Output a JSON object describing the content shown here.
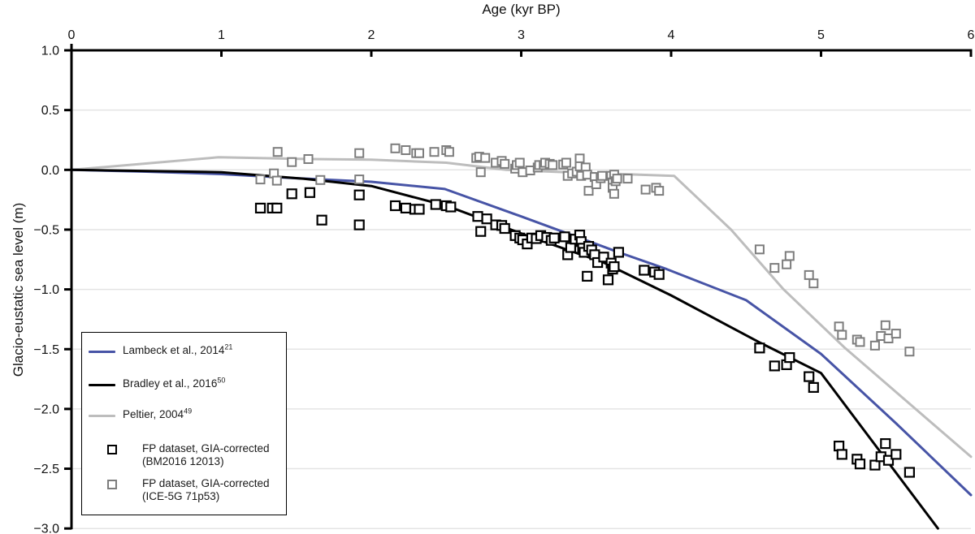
{
  "figure": {
    "xlabel": "Age (kyr BP)",
    "ylabel": "Glacio-eustatic sea level (m)"
  },
  "chart_data": {
    "type": "line",
    "title": "",
    "xlabel": "Age (kyr BP)",
    "ylabel": "Glacio-eustatic sea level (m)",
    "xlim": [
      0,
      6
    ],
    "ylim": [
      -3.0,
      1.0
    ],
    "x_ticks": [
      0,
      1,
      2,
      3,
      4,
      5,
      6
    ],
    "y_ticks": [
      1.0,
      0.5,
      0.0,
      -0.5,
      -1.0,
      -1.5,
      -2.0,
      -2.5,
      -3.0
    ],
    "grid": "horizontal",
    "x_axis_position": "top",
    "legend_position": "lower-left",
    "colors": {
      "lambeck": "#4754a6",
      "bradley": "#000000",
      "peltier": "#bdbdbd",
      "scatter_black": "#000000",
      "scatter_gray": "#7d7d7d",
      "gridline": "#e4e4e4"
    },
    "series": [
      {
        "name": "Peltier, 2004",
        "sup": "49",
        "type": "line",
        "color": "#bdbdbd",
        "width": 3,
        "points": [
          [
            0,
            0
          ],
          [
            0.98,
            0.105
          ],
          [
            1.6,
            0.09
          ],
          [
            2.0,
            0.085
          ],
          [
            2.5,
            0.06
          ],
          [
            2.9,
            0.0
          ],
          [
            3.3,
            -0.02
          ],
          [
            4.02,
            -0.05
          ],
          [
            4.4,
            -0.5
          ],
          [
            4.75,
            -1.0
          ],
          [
            5.16,
            -1.49
          ],
          [
            6.0,
            -2.4
          ]
        ]
      },
      {
        "name": "Lambeck et al., 2014",
        "sup": "21",
        "type": "line",
        "color": "#4754a6",
        "width": 3,
        "points": [
          [
            0,
            0
          ],
          [
            0.5,
            -0.015
          ],
          [
            1.0,
            -0.035
          ],
          [
            1.5,
            -0.07
          ],
          [
            2.0,
            -0.1
          ],
          [
            2.49,
            -0.16
          ],
          [
            3.0,
            -0.39
          ],
          [
            3.64,
            -0.685
          ],
          [
            3.97,
            -0.83
          ],
          [
            4.5,
            -1.09
          ],
          [
            5.0,
            -1.54
          ],
          [
            5.5,
            -2.12
          ],
          [
            6.0,
            -2.72
          ]
        ]
      },
      {
        "name": "Bradley et al., 2016",
        "sup": "50",
        "type": "line",
        "color": "#000000",
        "width": 3,
        "points": [
          [
            0,
            0
          ],
          [
            1.0,
            -0.02
          ],
          [
            1.55,
            -0.075
          ],
          [
            2.0,
            -0.135
          ],
          [
            2.5,
            -0.3
          ],
          [
            3.05,
            -0.555
          ],
          [
            3.55,
            -0.775
          ],
          [
            4.0,
            -1.05
          ],
          [
            4.6,
            -1.45
          ],
          [
            5.0,
            -1.7
          ],
          [
            5.78,
            -3.0
          ]
        ]
      },
      {
        "name": "FP dataset, GIA-corrected (ICE-5G 71p53)",
        "type": "scatter",
        "marker": "open-square",
        "color": "#7d7d7d",
        "size": 10,
        "stroke": 2,
        "points": [
          [
            1.26,
            -0.08
          ],
          [
            1.35,
            -0.03
          ],
          [
            1.37,
            -0.09
          ],
          [
            1.375,
            0.15
          ],
          [
            1.47,
            0.065
          ],
          [
            1.58,
            0.09
          ],
          [
            1.66,
            -0.085
          ],
          [
            1.92,
            0.14
          ],
          [
            1.92,
            -0.08
          ],
          [
            2.16,
            0.18
          ],
          [
            2.23,
            0.165
          ],
          [
            2.3,
            0.14
          ],
          [
            2.32,
            0.14
          ],
          [
            2.42,
            0.15
          ],
          [
            2.5,
            0.165
          ],
          [
            2.52,
            0.15
          ],
          [
            2.7,
            0.1
          ],
          [
            2.72,
            0.11
          ],
          [
            2.73,
            -0.02
          ],
          [
            2.76,
            0.1
          ],
          [
            2.83,
            0.06
          ],
          [
            2.87,
            0.075
          ],
          [
            2.89,
            0.05
          ],
          [
            2.96,
            0.01
          ],
          [
            2.97,
            0.04
          ],
          [
            2.99,
            0.06
          ],
          [
            3.01,
            -0.02
          ],
          [
            3.06,
            -0.005
          ],
          [
            3.11,
            0.02
          ],
          [
            3.12,
            0.04
          ],
          [
            3.15,
            0.04
          ],
          [
            3.16,
            0.06
          ],
          [
            3.19,
            0.05
          ],
          [
            3.21,
            0.04
          ],
          [
            3.28,
            0.045
          ],
          [
            3.3,
            0.06
          ],
          [
            3.31,
            -0.05
          ],
          [
            3.34,
            -0.03
          ],
          [
            3.37,
            -0.015
          ],
          [
            3.39,
            0.095
          ],
          [
            3.39,
            0.03
          ],
          [
            3.4,
            -0.05
          ],
          [
            3.43,
            0.02
          ],
          [
            3.44,
            -0.04
          ],
          [
            3.45,
            -0.175
          ],
          [
            3.49,
            -0.06
          ],
          [
            3.5,
            -0.12
          ],
          [
            3.53,
            -0.07
          ],
          [
            3.54,
            -0.05
          ],
          [
            3.6,
            -0.05
          ],
          [
            3.61,
            -0.105
          ],
          [
            3.61,
            -0.15
          ],
          [
            3.62,
            -0.04
          ],
          [
            3.62,
            -0.2
          ],
          [
            3.63,
            -0.095
          ],
          [
            3.64,
            -0.073
          ],
          [
            3.71,
            -0.073
          ],
          [
            3.83,
            -0.165
          ],
          [
            3.9,
            -0.15
          ],
          [
            3.92,
            -0.175
          ],
          [
            4.59,
            -0.665
          ],
          [
            4.69,
            -0.82
          ],
          [
            4.77,
            -0.79
          ],
          [
            4.79,
            -0.72
          ],
          [
            4.92,
            -0.88
          ],
          [
            4.95,
            -0.95
          ],
          [
            5.12,
            -1.31
          ],
          [
            5.14,
            -1.38
          ],
          [
            5.24,
            -1.42
          ],
          [
            5.26,
            -1.44
          ],
          [
            5.36,
            -1.47
          ],
          [
            5.4,
            -1.39
          ],
          [
            5.43,
            -1.3
          ],
          [
            5.45,
            -1.41
          ],
          [
            5.5,
            -1.37
          ],
          [
            5.59,
            -1.52
          ]
        ]
      },
      {
        "name": "FP dataset, GIA-corrected (BM2016 12013)",
        "type": "scatter",
        "marker": "open-square",
        "color": "#000000",
        "size": 11,
        "stroke": 2.2,
        "points": [
          [
            1.26,
            -0.32
          ],
          [
            1.34,
            -0.32
          ],
          [
            1.37,
            -0.32
          ],
          [
            1.47,
            -0.2
          ],
          [
            1.59,
            -0.19
          ],
          [
            1.67,
            -0.42
          ],
          [
            1.92,
            -0.21
          ],
          [
            1.92,
            -0.46
          ],
          [
            2.16,
            -0.3
          ],
          [
            2.23,
            -0.32
          ],
          [
            2.29,
            -0.33
          ],
          [
            2.32,
            -0.33
          ],
          [
            2.43,
            -0.29
          ],
          [
            2.5,
            -0.3
          ],
          [
            2.53,
            -0.31
          ],
          [
            2.71,
            -0.39
          ],
          [
            2.73,
            -0.515
          ],
          [
            2.77,
            -0.41
          ],
          [
            2.83,
            -0.46
          ],
          [
            2.87,
            -0.465
          ],
          [
            2.89,
            -0.49
          ],
          [
            2.96,
            -0.55
          ],
          [
            2.99,
            -0.57
          ],
          [
            3.01,
            -0.585
          ],
          [
            3.04,
            -0.62
          ],
          [
            3.07,
            -0.57
          ],
          [
            3.1,
            -0.575
          ],
          [
            3.13,
            -0.55
          ],
          [
            3.17,
            -0.565
          ],
          [
            3.2,
            -0.59
          ],
          [
            3.22,
            -0.57
          ],
          [
            3.29,
            -0.56
          ],
          [
            3.31,
            -0.71
          ],
          [
            3.33,
            -0.65
          ],
          [
            3.36,
            -0.58
          ],
          [
            3.39,
            -0.545
          ],
          [
            3.4,
            -0.6
          ],
          [
            3.41,
            -0.655
          ],
          [
            3.42,
            -0.69
          ],
          [
            3.44,
            -0.89
          ],
          [
            3.45,
            -0.64
          ],
          [
            3.47,
            -0.67
          ],
          [
            3.49,
            -0.71
          ],
          [
            3.51,
            -0.775
          ],
          [
            3.55,
            -0.73
          ],
          [
            3.58,
            -0.92
          ],
          [
            3.6,
            -0.78
          ],
          [
            3.61,
            -0.83
          ],
          [
            3.62,
            -0.81
          ],
          [
            3.65,
            -0.69
          ],
          [
            3.82,
            -0.84
          ],
          [
            3.89,
            -0.855
          ],
          [
            3.92,
            -0.875
          ],
          [
            4.59,
            -1.49
          ],
          [
            4.69,
            -1.64
          ],
          [
            4.77,
            -1.63
          ],
          [
            4.79,
            -1.57
          ],
          [
            4.92,
            -1.73
          ],
          [
            4.95,
            -1.82
          ],
          [
            5.12,
            -2.31
          ],
          [
            5.14,
            -2.38
          ],
          [
            5.24,
            -2.42
          ],
          [
            5.26,
            -2.46
          ],
          [
            5.36,
            -2.47
          ],
          [
            5.4,
            -2.4
          ],
          [
            5.43,
            -2.29
          ],
          [
            5.45,
            -2.43
          ],
          [
            5.5,
            -2.38
          ],
          [
            5.59,
            -2.53
          ]
        ]
      }
    ]
  },
  "legend": {
    "items": [
      {
        "label": "Lambeck et al., 2014",
        "sup": "21",
        "swatch": "line",
        "color": "#4754a6"
      },
      {
        "label": "Bradley et al., 2016",
        "sup": "50",
        "swatch": "line",
        "color": "#000000"
      },
      {
        "label": "Peltier, 2004",
        "sup": "49",
        "swatch": "line",
        "color": "#bdbdbd"
      },
      {
        "label": "FP dataset, GIA-corrected",
        "label2": "(BM2016 12013)",
        "swatch": "square",
        "color": "#000000"
      },
      {
        "label": "FP dataset, GIA-corrected",
        "label2": "(ICE-5G 71p53)",
        "swatch": "square",
        "color": "#7d7d7d"
      }
    ]
  }
}
